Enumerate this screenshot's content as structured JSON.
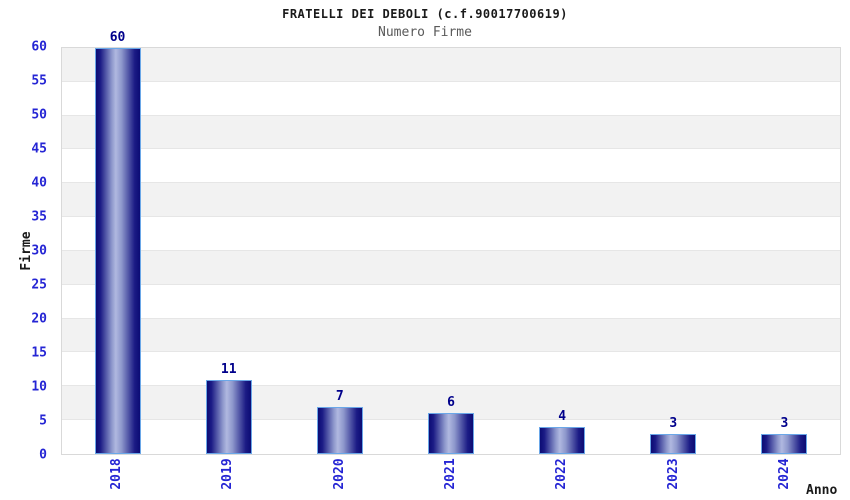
{
  "chart_data": {
    "type": "bar",
    "title": "FRATELLI DEI DEBOLI (c.f.90017700619)",
    "subtitle": "Numero Firme",
    "xlabel": "Anno",
    "ylabel": "Firme",
    "categories": [
      "2018",
      "2019",
      "2020",
      "2021",
      "2022",
      "2023",
      "2024"
    ],
    "values": [
      60,
      11,
      7,
      6,
      4,
      3,
      3
    ],
    "ylim": [
      0,
      60
    ],
    "yticks": [
      0,
      5,
      10,
      15,
      20,
      25,
      30,
      35,
      40,
      45,
      50,
      55,
      60
    ],
    "grid": "horizontal alternating bands with gridlines every 5",
    "legend": "none",
    "bar_labels_shown": true,
    "colors": {
      "title": "#1a1a1a",
      "subtitle": "#5a5a5a",
      "tick_label": "#2525d4",
      "value_label": "#00008b",
      "bar_border": "#6aa7e8",
      "bar_dark": "#0c0c74",
      "bar_light": "#b0b8e0",
      "band_gray": "#f2f2f2",
      "band_white": "#ffffff",
      "grid_line": "#e6e6e6",
      "plot_border": "#d9d9d9"
    }
  }
}
